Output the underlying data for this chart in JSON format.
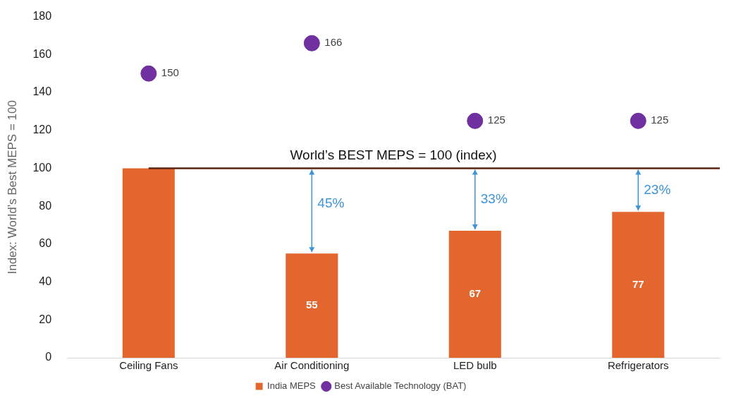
{
  "chart_data": {
    "type": "bar",
    "ylabel": "Index: World’s Best MEPS = 100",
    "categories": [
      "Ceiling Fans",
      "Air Conditioning",
      "LED bulb",
      "Refrigerators"
    ],
    "series": [
      {
        "name": "India MEPS",
        "color": "#e4662f",
        "values": [
          100,
          55,
          67,
          77
        ],
        "value_labels": [
          null,
          "55",
          "67",
          "77"
        ]
      },
      {
        "name": "Best Available Technology (BAT)",
        "type": "scatter",
        "color": "#7030a0",
        "x": [
          "Ceiling Fans",
          "Air Conditioning",
          "LED bulb",
          "Refrigerators"
        ],
        "values": [
          150,
          166,
          125,
          125
        ],
        "value_labels": [
          "150",
          "166",
          "125",
          "125"
        ]
      }
    ],
    "ylim": [
      0,
      180
    ],
    "yticks": [
      0,
      20,
      40,
      60,
      80,
      100,
      120,
      140,
      160,
      180
    ],
    "grid": false,
    "legend": "bottom",
    "marker": "circle",
    "ref_lines": [
      {
        "axis": "y",
        "value": 100,
        "label": "World’s BEST MEPS = 100 (index)",
        "color": "#5c2412"
      }
    ],
    "annotations": [
      "45%",
      "33%",
      "23%"
    ]
  }
}
